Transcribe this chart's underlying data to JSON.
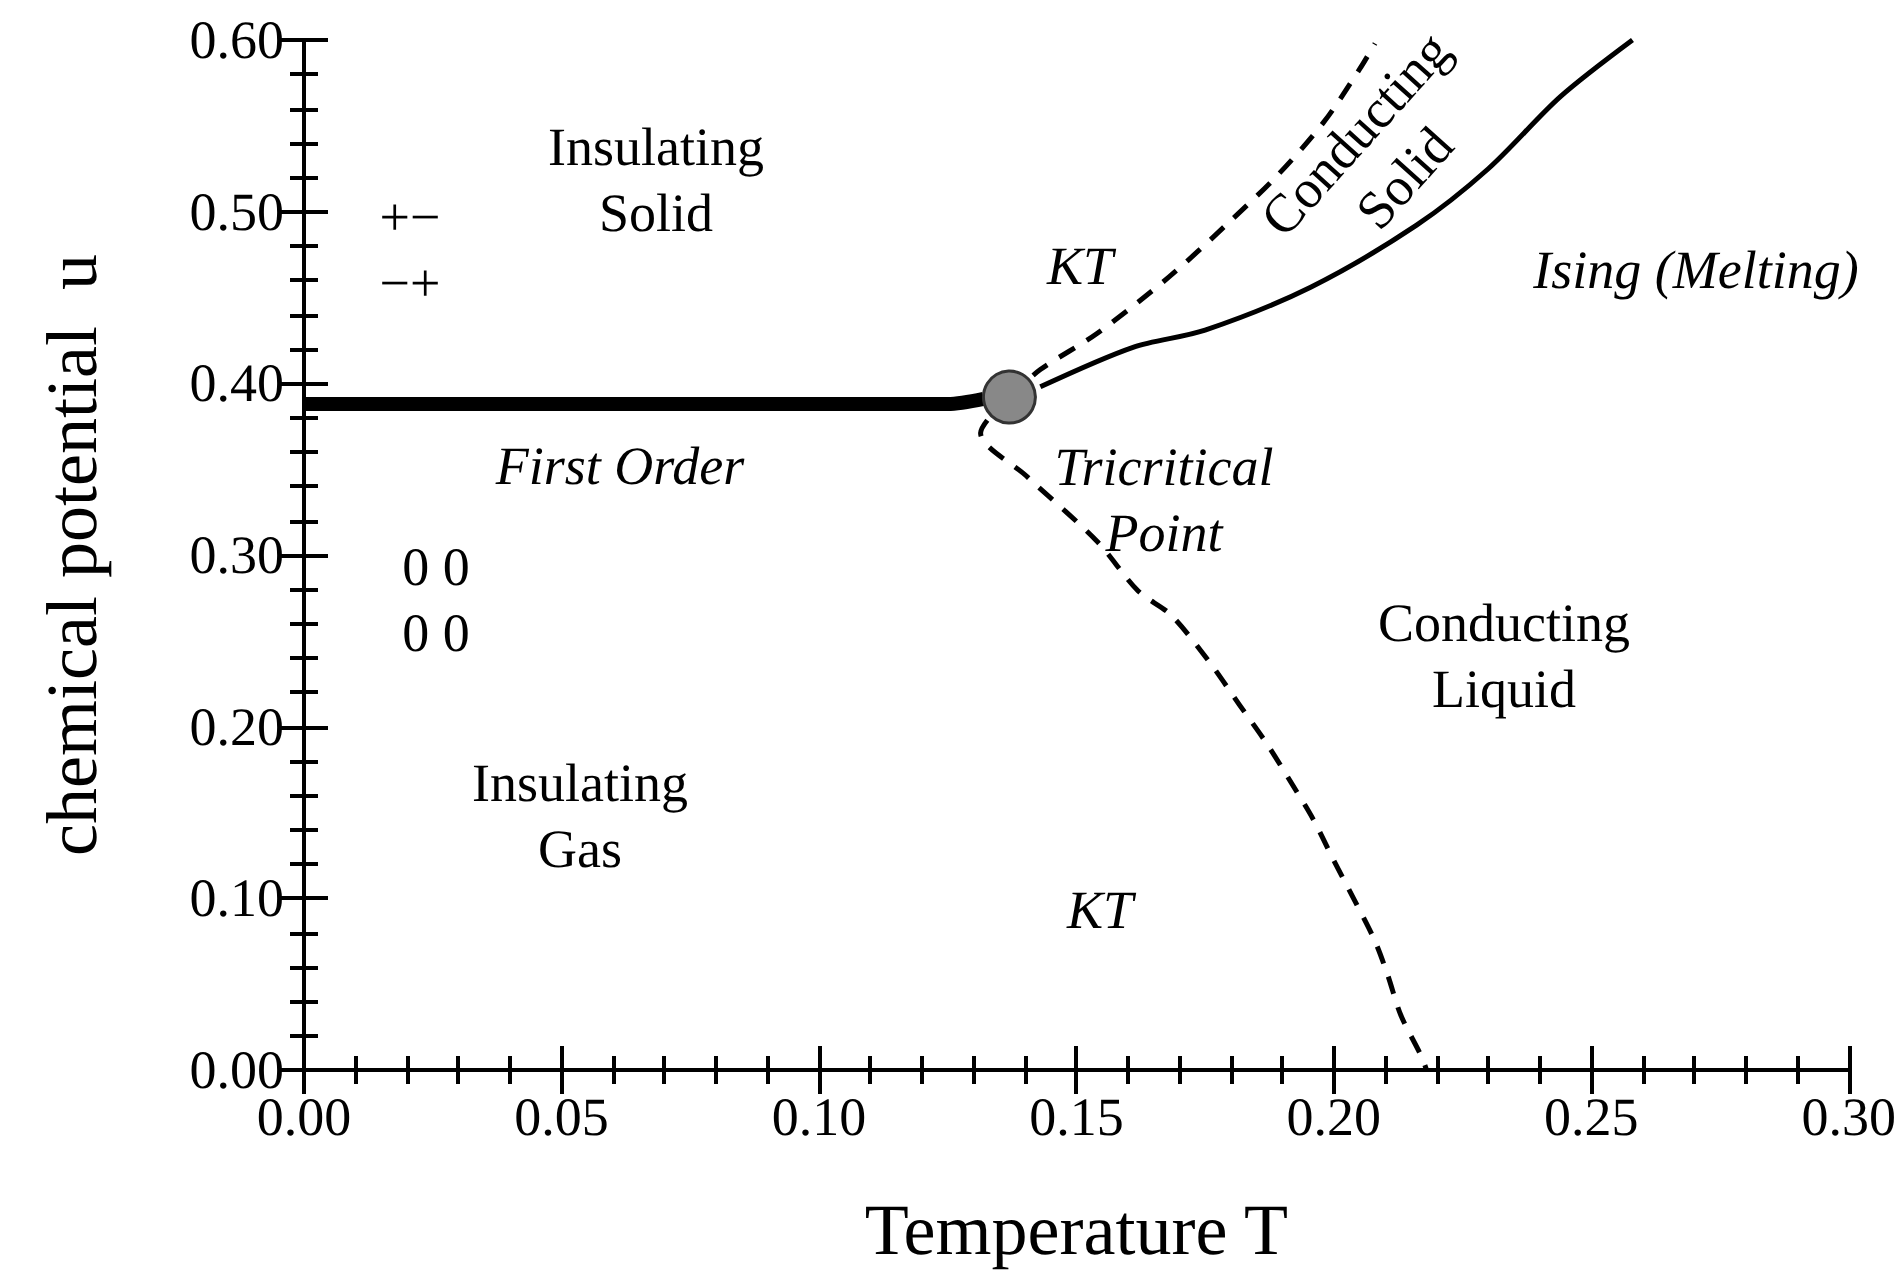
{
  "chart_data": {
    "type": "line",
    "xlabel": "Temperature T",
    "ylabel": "chemical potential  u",
    "xlim": [
      0,
      0.3
    ],
    "ylim": [
      0,
      0.6
    ],
    "xticks": [
      {
        "value": 0,
        "label": "0.00"
      },
      {
        "value": 0.05,
        "label": "0.05"
      },
      {
        "value": 0.1,
        "label": "0.10"
      },
      {
        "value": 0.15,
        "label": "0.15"
      },
      {
        "value": 0.2,
        "label": "0.20"
      },
      {
        "value": 0.25,
        "label": "0.25"
      },
      {
        "value": 0.3,
        "label": "0.30"
      }
    ],
    "yticks": [
      {
        "value": 0,
        "label": "0.00"
      },
      {
        "value": 0.1,
        "label": "0.10"
      },
      {
        "value": 0.2,
        "label": "0.20"
      },
      {
        "value": 0.3,
        "label": "0.30"
      },
      {
        "value": 0.4,
        "label": "0.40"
      },
      {
        "value": 0.5,
        "label": "0.50"
      },
      {
        "value": 0.6,
        "label": "0.60"
      }
    ],
    "marker": "none",
    "series": [
      {
        "color": "#000000",
        "line_style": "solid",
        "x": [
          0,
          0.125,
          0.132
        ],
        "values": [
          0.388,
          0.388,
          0.391
        ]
      },
      {
        "color": "#000000",
        "line_style": "solid",
        "x": [
          0.143,
          0.161,
          0.175,
          0.1955,
          0.216,
          0.23,
          0.244,
          0.258
        ],
        "values": [
          0.398,
          0.421,
          0.431,
          0.456,
          0.492,
          0.525,
          0.567,
          0.6
        ]
      },
      {
        "color": "#000000",
        "line_style": "dashed",
        "x": [
          0.137,
          0.143,
          0.154,
          0.168,
          0.179,
          0.189,
          0.198,
          0.205,
          0.208
        ],
        "values": [
          0.392,
          0.408,
          0.429,
          0.462,
          0.492,
          0.521,
          0.552,
          0.583,
          0.598
        ]
      },
      {
        "color": "#000000",
        "line_style": "dashed",
        "x": [
          0.137,
          0.1314,
          0.1403,
          0.154,
          0.162,
          0.1684,
          0.176,
          0.1816,
          0.187,
          0.192,
          0.196,
          0.2,
          0.204,
          0.208,
          0.2105,
          0.213,
          0.217,
          0.218
        ],
        "values": [
          0.392,
          0.371,
          0.346,
          0.308,
          0.279,
          0.265,
          0.237,
          0.213,
          0.19,
          0.166,
          0.146,
          0.122,
          0.099,
          0.075,
          0.055,
          0.032,
          0.008,
          0
        ]
      },
      {
        "type": "scatter",
        "marker": "circle",
        "color": "#888888",
        "x": [
          0.137
        ],
        "values": [
          0.392
        ]
      }
    ],
    "annotations": [
      "Insulating\nSolid",
      "+−\n−+",
      "KT",
      "Conducting\nSolid",
      "Ising (Melting)",
      "Tricritical\nPoint",
      "First Order",
      "0 0\n0 0",
      "Conducting\nLiquid",
      "KT",
      "Insulating\nGas"
    ]
  }
}
